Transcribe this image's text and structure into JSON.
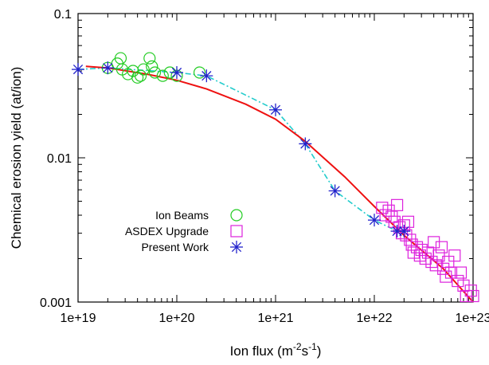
{
  "chart_data": {
    "type": "scatter",
    "xscale": "log",
    "yscale": "log",
    "xlim": [
      1e+19,
      1e+23
    ],
    "ylim": [
      0.001,
      0.1
    ],
    "xlabel": "Ion flux (m",
    "xlabel_sup1": "-2",
    "xlabel_mid": "s",
    "xlabel_sup2": "-1",
    "xlabel_end": ")",
    "ylabel": "Chemical erosion yield (at/ion)",
    "x_ticks": [
      {
        "value": 1e+19,
        "label": "1e+19"
      },
      {
        "value": 1e+20,
        "label": "1e+20"
      },
      {
        "value": 1e+21,
        "label": "1e+21"
      },
      {
        "value": 1e+22,
        "label": "1e+22"
      },
      {
        "value": 1e+23,
        "label": "1e+23"
      }
    ],
    "y_ticks": [
      {
        "value": 0.1,
        "label": "0.1"
      },
      {
        "value": 0.01,
        "label": "0.01"
      },
      {
        "value": 0.001,
        "label": "0.001"
      }
    ],
    "grid": false,
    "legend_position": "left",
    "series": [
      {
        "name": "Ion Beams",
        "marker": "circle",
        "color": "#22cc22",
        "points": [
          [
            2e+19,
            0.042
          ],
          [
            2.5e+19,
            0.045
          ],
          [
            2.7e+19,
            0.049
          ],
          [
            2.8e+19,
            0.041
          ],
          [
            3.2e+19,
            0.038
          ],
          [
            3.6e+19,
            0.04
          ],
          [
            4e+19,
            0.036
          ],
          [
            4.3e+19,
            0.037
          ],
          [
            4.6e+19,
            0.041
          ],
          [
            5.3e+19,
            0.049
          ],
          [
            5.6e+19,
            0.043
          ],
          [
            6e+19,
            0.039
          ],
          [
            7.2e+19,
            0.037
          ],
          [
            8.5e+19,
            0.039
          ],
          [
            1e+20,
            0.037
          ],
          [
            1.7e+20,
            0.039
          ]
        ]
      },
      {
        "name": "ASDEX Upgrade",
        "marker": "square",
        "color": "#dd22dd",
        "points": [
          [
            1.2e+22,
            0.0045
          ],
          [
            1.3e+22,
            0.004
          ],
          [
            1.4e+22,
            0.0043
          ],
          [
            1.5e+22,
            0.0039
          ],
          [
            1.6e+22,
            0.0036
          ],
          [
            1.7e+22,
            0.0047
          ],
          [
            1.8e+22,
            0.0033
          ],
          [
            1.9e+22,
            0.003
          ],
          [
            2e+22,
            0.0034
          ],
          [
            2.1e+22,
            0.0029
          ],
          [
            2.2e+22,
            0.0036
          ],
          [
            2.3e+22,
            0.0027
          ],
          [
            2.4e+22,
            0.0025
          ],
          [
            2.5e+22,
            0.0022
          ],
          [
            2.7e+22,
            0.0024
          ],
          [
            2.9e+22,
            0.0021
          ],
          [
            3e+22,
            0.0023
          ],
          [
            3.3e+22,
            0.002
          ],
          [
            3.5e+22,
            0.0022
          ],
          [
            3.8e+22,
            0.0019
          ],
          [
            4e+22,
            0.0026
          ],
          [
            4.2e+22,
            0.0018
          ],
          [
            4.5e+22,
            0.0021
          ],
          [
            4.8e+22,
            0.0024
          ],
          [
            5e+22,
            0.0017
          ],
          [
            5.3e+22,
            0.0015
          ],
          [
            5.6e+22,
            0.0019
          ],
          [
            6e+22,
            0.0016
          ],
          [
            6.5e+22,
            0.0021
          ],
          [
            7e+22,
            0.0014
          ],
          [
            7.5e+22,
            0.0016
          ],
          [
            8e+22,
            0.0013
          ],
          [
            8.5e+22,
            0.0011
          ],
          [
            9.5e+22,
            0.0012
          ],
          [
            1e+23,
            0.0011
          ]
        ]
      },
      {
        "name": "Present Work",
        "marker": "asterisk",
        "color": "#2222cc",
        "points": [
          [
            1e+19,
            0.041
          ],
          [
            2e+19,
            0.042
          ],
          [
            1e+20,
            0.039
          ],
          [
            2e+20,
            0.037
          ],
          [
            1e+21,
            0.0215
          ],
          [
            2e+21,
            0.0125
          ],
          [
            4e+21,
            0.0059
          ],
          [
            1e+22,
            0.0037
          ],
          [
            1.7e+22,
            0.0031
          ],
          [
            2e+22,
            0.0031
          ]
        ]
      },
      {
        "name": "",
        "marker": "none",
        "line": "dash-dot",
        "color": "#22cccc",
        "points": [
          [
            1e+19,
            0.041
          ],
          [
            2e+19,
            0.042
          ],
          [
            1e+20,
            0.039
          ],
          [
            2e+20,
            0.037
          ],
          [
            1e+21,
            0.0215
          ],
          [
            2e+21,
            0.0125
          ],
          [
            4e+21,
            0.0059
          ],
          [
            1e+22,
            0.0037
          ],
          [
            1.7e+22,
            0.0031
          ],
          [
            2e+22,
            0.0031
          ]
        ]
      },
      {
        "name": "",
        "marker": "none",
        "line": "solid",
        "color": "#ee1111",
        "points": [
          [
            1.2e+19,
            0.043
          ],
          [
            2e+19,
            0.042
          ],
          [
            5e+19,
            0.038
          ],
          [
            1e+20,
            0.0345
          ],
          [
            2e+20,
            0.03
          ],
          [
            5e+20,
            0.0235
          ],
          [
            1e+21,
            0.0185
          ],
          [
            2e+21,
            0.013
          ],
          [
            5e+21,
            0.0074
          ],
          [
            1e+22,
            0.0046
          ],
          [
            2e+22,
            0.0029
          ],
          [
            5e+22,
            0.0017
          ],
          [
            1e+23,
            0.001
          ]
        ]
      }
    ]
  }
}
